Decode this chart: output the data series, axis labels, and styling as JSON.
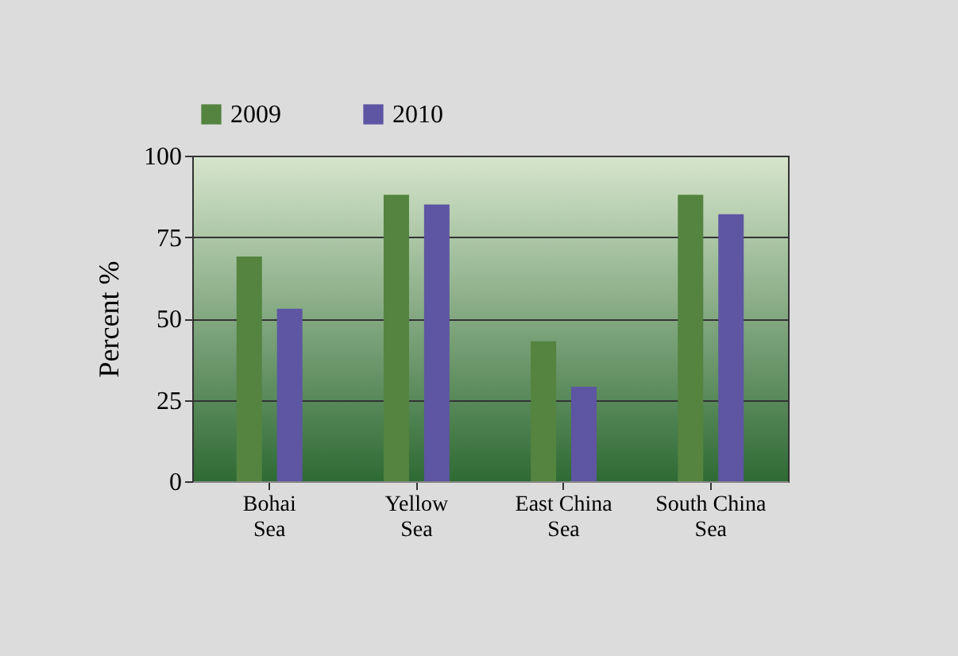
{
  "chart_data": {
    "type": "bar",
    "ylabel": "Percent %",
    "categories": [
      "Bohai Sea",
      "Yellow Sea",
      "East China Sea",
      "South China Sea"
    ],
    "series": [
      {
        "name": "2009",
        "color": "#548440",
        "values": [
          69,
          88,
          43,
          88
        ]
      },
      {
        "name": "2010",
        "color": "#5e55a3",
        "values": [
          53,
          85,
          29,
          82
        ]
      }
    ],
    "ylim": [
      0,
      100
    ],
    "yticks": [
      0,
      25,
      50,
      75,
      100
    ],
    "grid": "y",
    "legend": "top"
  }
}
